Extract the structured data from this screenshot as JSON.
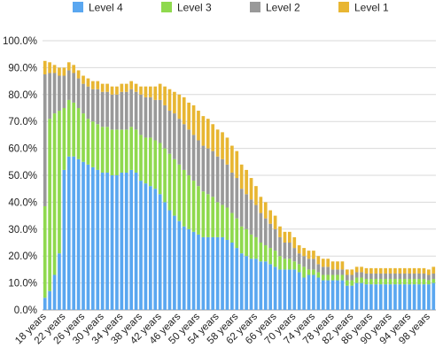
{
  "chart_data": {
    "type": "bar",
    "stacked": true,
    "title": "",
    "xlabel": "",
    "ylabel": "",
    "ylim": [
      0,
      100
    ],
    "y_tick_step": 10,
    "y_tick_format": "percent_1dp",
    "grid": true,
    "legend_position": "top",
    "x_tick_every": 4,
    "x": [
      18,
      19,
      20,
      21,
      22,
      23,
      24,
      25,
      26,
      27,
      28,
      29,
      30,
      31,
      32,
      33,
      34,
      35,
      36,
      37,
      38,
      39,
      40,
      41,
      42,
      43,
      44,
      45,
      46,
      47,
      48,
      49,
      50,
      51,
      52,
      53,
      54,
      55,
      56,
      57,
      58,
      59,
      60,
      61,
      62,
      63,
      64,
      65,
      66,
      67,
      68,
      69,
      70,
      71,
      72,
      73,
      74,
      75,
      76,
      77,
      78,
      79,
      80,
      81,
      82,
      83,
      84,
      85,
      86,
      87,
      88,
      89,
      90,
      91,
      92,
      93,
      94,
      95,
      96,
      97,
      98,
      99
    ],
    "x_suffix": " years",
    "series": [
      {
        "name": "Level 4",
        "color": "#5aa7f0",
        "values": [
          4.5,
          7,
          13,
          21,
          52,
          57,
          57,
          56,
          55,
          54,
          53,
          52,
          51,
          51,
          50,
          50,
          51,
          51,
          52,
          51,
          48,
          47,
          46,
          45,
          43,
          40,
          37,
          35,
          33,
          31,
          30,
          29,
          28,
          27,
          27,
          27,
          27,
          27,
          26,
          25,
          23,
          21,
          20,
          19,
          19,
          18,
          18,
          17,
          16,
          15,
          15,
          15,
          15,
          14,
          12,
          13,
          13,
          12,
          11,
          11,
          11,
          11,
          11,
          9,
          9,
          10,
          10,
          9.5,
          9.5,
          9.5,
          9.5,
          9.5,
          9.5,
          9.5,
          9.5,
          9.5,
          9.5,
          9.5,
          9.5,
          9.5,
          9.5,
          10
        ]
      },
      {
        "name": "Level 3",
        "color": "#8fd94e",
        "values": [
          34,
          64,
          60,
          53,
          23,
          21,
          20,
          19,
          18,
          17,
          17,
          17,
          17,
          17,
          17,
          17,
          16,
          16,
          16,
          16,
          17,
          17,
          18,
          18,
          19,
          20,
          21,
          21,
          21,
          21,
          20,
          19,
          18,
          17,
          16,
          15,
          13,
          12,
          12,
          11,
          11,
          10,
          10,
          9,
          8,
          7,
          6,
          6,
          6,
          5,
          4,
          4,
          3,
          3,
          4,
          2,
          2,
          2,
          2,
          2,
          2,
          2,
          2,
          2,
          2,
          2,
          2,
          2,
          2,
          2,
          2,
          2,
          2,
          2,
          2,
          2,
          2,
          2,
          2,
          2,
          1.5,
          1.5
        ]
      },
      {
        "name": "Level 2",
        "color": "#999999",
        "values": [
          49,
          17,
          15,
          13,
          12,
          11,
          11,
          11,
          11,
          12,
          12,
          13,
          13,
          13,
          13,
          13,
          14,
          14,
          14,
          14,
          15,
          15,
          15,
          15,
          16,
          16,
          16,
          17,
          17,
          17,
          17,
          17,
          17,
          17,
          17,
          17,
          17,
          17,
          16,
          15,
          15,
          14,
          13,
          13,
          12,
          11,
          10,
          9,
          8,
          7,
          6,
          6,
          5,
          4,
          4,
          4,
          4,
          3,
          3,
          3,
          2,
          2,
          2,
          2,
          2,
          2,
          2,
          2,
          2,
          2,
          2,
          2,
          2,
          2,
          2,
          2,
          2,
          2,
          2,
          2,
          2,
          2
        ]
      },
      {
        "name": "Level 1",
        "color": "#e8b632",
        "values": [
          5,
          4,
          3,
          3,
          3,
          3,
          3,
          3,
          3,
          3,
          3,
          3,
          3,
          3,
          3,
          3,
          3,
          3,
          3,
          3,
          3,
          4,
          4,
          5,
          6,
          7,
          8,
          8,
          9,
          10,
          10,
          11,
          11,
          11,
          11,
          10,
          10,
          10,
          10,
          10,
          10,
          9,
          9,
          8,
          7,
          6,
          6,
          5,
          5,
          4,
          4,
          4,
          4,
          3,
          3,
          3,
          3,
          3,
          3,
          3,
          3,
          3,
          3,
          2,
          2,
          2,
          2,
          2,
          2,
          2,
          2,
          2,
          2,
          2,
          2,
          2,
          2,
          2,
          2,
          2,
          2,
          2.5
        ]
      }
    ]
  }
}
